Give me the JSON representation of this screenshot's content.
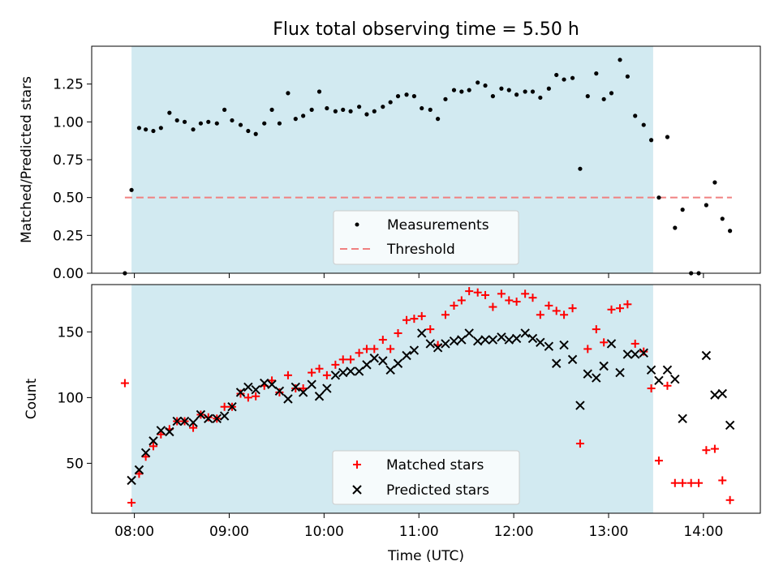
{
  "chart_data": [
    {
      "type": "scatter",
      "title": "Flux total observing time = 5.50 h",
      "xlabel": "",
      "ylabel": "Matched/Predicted stars",
      "xlim": [
        7.55,
        14.6
      ],
      "ylim": [
        0.0,
        1.5
      ],
      "yticks": [
        0.0,
        0.25,
        0.5,
        0.75,
        1.0,
        1.25
      ],
      "ytick_labels": [
        "0.00",
        "0.25",
        "0.50",
        "0.75",
        "1.00",
        "1.25"
      ],
      "shaded_span": [
        7.97,
        13.47
      ],
      "threshold": {
        "value": 0.5,
        "x_range": [
          7.9,
          14.3
        ],
        "color": "#f08080"
      },
      "legend_position": "lower-center",
      "series": [
        {
          "name": "Measurements",
          "color": "#000000",
          "x": [
            7.9,
            7.97,
            8.05,
            8.12,
            8.2,
            8.28,
            8.37,
            8.45,
            8.53,
            8.62,
            8.7,
            8.78,
            8.87,
            8.95,
            9.03,
            9.12,
            9.2,
            9.28,
            9.37,
            9.45,
            9.53,
            9.62,
            9.7,
            9.78,
            9.87,
            9.95,
            10.03,
            10.12,
            10.2,
            10.28,
            10.37,
            10.45,
            10.53,
            10.62,
            10.7,
            10.78,
            10.87,
            10.95,
            11.03,
            11.12,
            11.2,
            11.28,
            11.37,
            11.45,
            11.53,
            11.62,
            11.7,
            11.78,
            11.87,
            11.95,
            12.03,
            12.12,
            12.2,
            12.28,
            12.37,
            12.45,
            12.53,
            12.62,
            12.7,
            12.78,
            12.87,
            12.95,
            13.03,
            13.12,
            13.2,
            13.28,
            13.37,
            13.45,
            13.53,
            13.62,
            13.7,
            13.78,
            13.87,
            13.95,
            14.03,
            14.12,
            14.2,
            14.28
          ],
          "y": [
            0.0,
            0.55,
            0.96,
            0.95,
            0.94,
            0.96,
            1.06,
            1.01,
            1.0,
            0.95,
            0.99,
            1.0,
            0.99,
            1.08,
            1.01,
            0.98,
            0.94,
            0.92,
            0.99,
            1.08,
            0.99,
            1.19,
            1.02,
            1.04,
            1.08,
            1.2,
            1.09,
            1.07,
            1.08,
            1.07,
            1.1,
            1.05,
            1.07,
            1.1,
            1.13,
            1.17,
            1.18,
            1.17,
            1.09,
            1.08,
            1.02,
            1.15,
            1.21,
            1.2,
            1.21,
            1.26,
            1.24,
            1.17,
            1.22,
            1.21,
            1.18,
            1.2,
            1.2,
            1.16,
            1.22,
            1.31,
            1.28,
            1.29,
            0.69,
            1.17,
            1.32,
            1.15,
            1.19,
            1.41,
            1.3,
            1.04,
            0.98,
            0.88,
            0.5,
            0.9,
            0.3,
            0.42,
            0.0,
            0.0,
            0.45,
            0.6,
            0.36,
            0.28
          ]
        }
      ],
      "legend": [
        "Measurements",
        "Threshold"
      ]
    },
    {
      "type": "scatter",
      "title": "",
      "xlabel": "Time (UTC)",
      "ylabel": "Count",
      "xlim": [
        7.55,
        14.6
      ],
      "ylim": [
        12,
        186
      ],
      "yticks": [
        50,
        100,
        150
      ],
      "ytick_labels": [
        "50",
        "100",
        "150"
      ],
      "xticks": [
        8,
        9,
        10,
        11,
        12,
        13,
        14
      ],
      "xtick_labels": [
        "08:00",
        "09:00",
        "10:00",
        "11:00",
        "12:00",
        "13:00",
        "14:00"
      ],
      "shaded_span": [
        7.97,
        13.47
      ],
      "legend_position": "lower-center",
      "series": [
        {
          "name": "Matched stars",
          "color": "#ff0000",
          "marker": "+",
          "x": [
            7.9,
            7.97,
            8.05,
            8.12,
            8.2,
            8.28,
            8.37,
            8.45,
            8.53,
            8.62,
            8.7,
            8.78,
            8.87,
            8.95,
            9.03,
            9.12,
            9.2,
            9.28,
            9.37,
            9.45,
            9.53,
            9.62,
            9.7,
            9.78,
            9.87,
            9.95,
            10.03,
            10.12,
            10.2,
            10.28,
            10.37,
            10.45,
            10.53,
            10.62,
            10.7,
            10.78,
            10.87,
            10.95,
            11.03,
            11.12,
            11.2,
            11.28,
            11.37,
            11.45,
            11.53,
            11.62,
            11.7,
            11.78,
            11.87,
            11.95,
            12.03,
            12.12,
            12.2,
            12.28,
            12.37,
            12.45,
            12.53,
            12.62,
            12.7,
            12.78,
            12.87,
            12.95,
            13.03,
            13.12,
            13.2,
            13.28,
            13.37,
            13.45,
            13.53,
            13.62,
            13.7,
            13.78,
            13.87,
            13.95,
            14.03,
            14.12,
            14.2,
            14.28
          ],
          "y": [
            111,
            20,
            42,
            55,
            63,
            72,
            76,
            82,
            82,
            77,
            87,
            85,
            84,
            93,
            93,
            103,
            100,
            101,
            109,
            113,
            104,
            117,
            107,
            107,
            119,
            122,
            117,
            125,
            129,
            129,
            134,
            137,
            137,
            144,
            137,
            149,
            159,
            160,
            162,
            152,
            140,
            163,
            170,
            174,
            181,
            180,
            178,
            169,
            179,
            174,
            173,
            179,
            176,
            163,
            170,
            166,
            163,
            168,
            65,
            137,
            152,
            142,
            167,
            168,
            171,
            141,
            135,
            107,
            52,
            109,
            35,
            35,
            35,
            35,
            60,
            61,
            37,
            22
          ]
        },
        {
          "name": "Predicted stars",
          "color": "#000000",
          "marker": "x",
          "x": [
            7.97,
            8.05,
            8.12,
            8.2,
            8.28,
            8.37,
            8.45,
            8.53,
            8.62,
            8.7,
            8.78,
            8.87,
            8.95,
            9.03,
            9.12,
            9.2,
            9.28,
            9.37,
            9.45,
            9.53,
            9.62,
            9.7,
            9.78,
            9.87,
            9.95,
            10.03,
            10.12,
            10.2,
            10.28,
            10.37,
            10.45,
            10.53,
            10.62,
            10.7,
            10.78,
            10.87,
            10.95,
            11.03,
            11.12,
            11.2,
            11.28,
            11.37,
            11.45,
            11.53,
            11.62,
            11.7,
            11.78,
            11.87,
            11.95,
            12.03,
            12.12,
            12.2,
            12.28,
            12.37,
            12.45,
            12.53,
            12.62,
            12.7,
            12.78,
            12.87,
            12.95,
            13.03,
            13.12,
            13.2,
            13.28,
            13.37,
            13.45,
            13.53,
            13.62,
            13.7,
            13.78,
            14.03,
            14.12,
            14.2,
            14.28
          ],
          "y": [
            37,
            45,
            58,
            67,
            75,
            74,
            82,
            82,
            81,
            87,
            84,
            84,
            86,
            93,
            104,
            108,
            106,
            111,
            110,
            105,
            99,
            108,
            104,
            110,
            101,
            107,
            117,
            119,
            120,
            120,
            125,
            130,
            128,
            121,
            126,
            132,
            136,
            149,
            141,
            138,
            141,
            143,
            144,
            149,
            143,
            144,
            144,
            146,
            144,
            145,
            149,
            145,
            142,
            139,
            126,
            140,
            129,
            94,
            118,
            115,
            124,
            141,
            119,
            133,
            133,
            134,
            121,
            113,
            121,
            114,
            84,
            132,
            102,
            103,
            79
          ]
        }
      ],
      "legend": [
        "Matched stars",
        "Predicted stars"
      ]
    }
  ]
}
